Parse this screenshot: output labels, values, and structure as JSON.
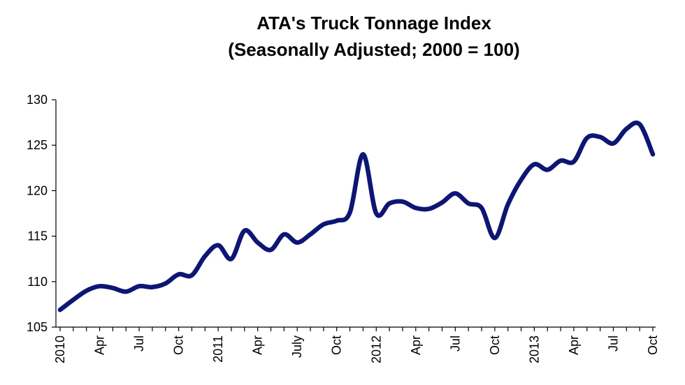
{
  "chart_data": {
    "type": "line",
    "title": "ATA's  Truck Tonnage Index",
    "subtitle": "(Seasonally Adjusted; 2000 = 100)",
    "xlabel": "",
    "ylabel": "",
    "ylim": [
      105,
      130
    ],
    "yticks": [
      105,
      110,
      115,
      120,
      125,
      130
    ],
    "grid": false,
    "legend": "none",
    "line_color": "#0d1673",
    "x_tick_labels": [
      {
        "index": 0,
        "label": "2010"
      },
      {
        "index": 3,
        "label": "Apr"
      },
      {
        "index": 6,
        "label": "Jul"
      },
      {
        "index": 9,
        "label": "Oct"
      },
      {
        "index": 12,
        "label": "2011"
      },
      {
        "index": 15,
        "label": "Apr"
      },
      {
        "index": 18,
        "label": "July"
      },
      {
        "index": 21,
        "label": "Oct"
      },
      {
        "index": 24,
        "label": "2012"
      },
      {
        "index": 27,
        "label": "Apr"
      },
      {
        "index": 30,
        "label": "Jul"
      },
      {
        "index": 33,
        "label": "Oct"
      },
      {
        "index": 36,
        "label": "2013"
      },
      {
        "index": 39,
        "label": "Apr"
      },
      {
        "index": 42,
        "label": "Jul"
      },
      {
        "index": 45,
        "label": "Oct"
      }
    ],
    "x": [
      "2010-01",
      "2010-02",
      "2010-03",
      "2010-04",
      "2010-05",
      "2010-06",
      "2010-07",
      "2010-08",
      "2010-09",
      "2010-10",
      "2010-11",
      "2010-12",
      "2011-01",
      "2011-02",
      "2011-03",
      "2011-04",
      "2011-05",
      "2011-06",
      "2011-07",
      "2011-08",
      "2011-09",
      "2011-10",
      "2011-11",
      "2011-12",
      "2012-01",
      "2012-02",
      "2012-03",
      "2012-04",
      "2012-05",
      "2012-06",
      "2012-07",
      "2012-08",
      "2012-09",
      "2012-10",
      "2012-11",
      "2012-12",
      "2013-01",
      "2013-02",
      "2013-03",
      "2013-04",
      "2013-05",
      "2013-06",
      "2013-07",
      "2013-08",
      "2013-09",
      "2013-10"
    ],
    "series": [
      {
        "values": [
          106.9,
          108.0,
          109.0,
          109.5,
          109.3,
          108.9,
          109.5,
          109.4,
          109.8,
          110.8,
          110.7,
          112.8,
          114.0,
          112.5,
          115.6,
          114.3,
          113.5,
          115.2,
          114.3,
          115.2,
          116.3,
          116.7,
          117.6,
          124.0,
          117.5,
          118.6,
          118.8,
          118.1,
          118.0,
          118.7,
          119.7,
          118.6,
          118.1,
          114.8,
          118.5,
          121.2,
          122.9,
          122.3,
          123.3,
          123.2,
          125.8,
          125.9,
          125.2,
          126.8,
          127.3,
          124.0
        ]
      }
    ]
  }
}
